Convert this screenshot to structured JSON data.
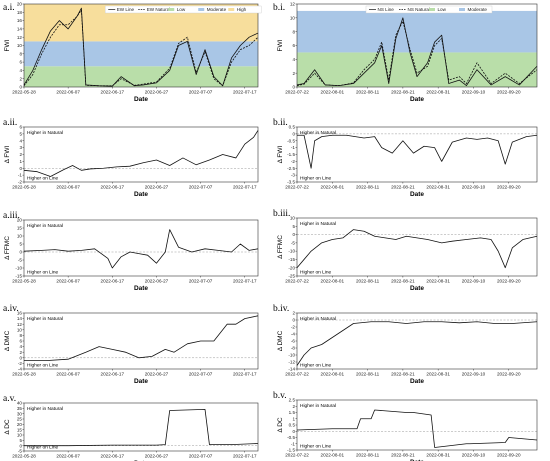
{
  "chart_data": [
    {
      "id": "a1",
      "panel_label": "a.i.",
      "type": "line",
      "ylabel": "FWI",
      "xlabel": "Date",
      "ylim": [
        0,
        20
      ],
      "yticks": [
        0,
        2,
        4,
        6,
        8,
        10,
        12,
        14,
        16,
        18,
        20
      ],
      "xlim": [
        "2022-05-28",
        "2022-07-20"
      ],
      "xticks": [
        "2022-05-28",
        "2022-06-07",
        "2022-06-17",
        "2022-06-27",
        "2022-07-07",
        "2022-07-17"
      ],
      "bands": [
        {
          "name": "Low",
          "from": 0,
          "to": 5,
          "color": "#b9dea9"
        },
        {
          "name": "Moderate",
          "from": 5,
          "to": 11,
          "color": "#a9c6e6"
        },
        {
          "name": "High",
          "from": 11,
          "to": 20,
          "color": "#f7de9c"
        }
      ],
      "legend": [
        "EW Line",
        "EW Natural",
        "Low",
        "Moderate",
        "High"
      ],
      "series": [
        {
          "name": "EW Line",
          "style": "solid",
          "x": [
            "2022-05-28",
            "2022-05-30",
            "2022-06-01",
            "2022-06-03",
            "2022-06-05",
            "2022-06-07",
            "2022-06-09",
            "2022-06-10",
            "2022-06-11",
            "2022-06-14",
            "2022-06-17",
            "2022-06-19",
            "2022-06-22",
            "2022-06-24",
            "2022-06-27",
            "2022-06-30",
            "2022-07-02",
            "2022-07-04",
            "2022-07-06",
            "2022-07-08",
            "2022-07-10",
            "2022-07-12",
            "2022-07-14",
            "2022-07-16",
            "2022-07-18",
            "2022-07-20"
          ],
          "y": [
            0.5,
            4,
            9,
            13.5,
            16,
            14,
            17,
            19,
            0.5,
            0.3,
            0.2,
            2.5,
            0.3,
            0.5,
            1,
            4,
            10,
            11,
            3,
            9,
            2.5,
            0.3,
            7,
            10,
            12,
            13
          ]
        },
        {
          "name": "EW Natural",
          "style": "dashed",
          "x": [
            "2022-05-28",
            "2022-05-30",
            "2022-06-01",
            "2022-06-03",
            "2022-06-05",
            "2022-06-07",
            "2022-06-09",
            "2022-06-10",
            "2022-06-11",
            "2022-06-14",
            "2022-06-17",
            "2022-06-19",
            "2022-06-22",
            "2022-06-24",
            "2022-06-27",
            "2022-06-30",
            "2022-07-02",
            "2022-07-04",
            "2022-07-06",
            "2022-07-08",
            "2022-07-10",
            "2022-07-12",
            "2022-07-14",
            "2022-07-16",
            "2022-07-18",
            "2022-07-20"
          ],
          "y": [
            0.3,
            3,
            8,
            12,
            15,
            15,
            17,
            18.5,
            0.4,
            0.3,
            0.3,
            2,
            0.4,
            0.7,
            1.2,
            4.5,
            10.5,
            12,
            3.5,
            8.5,
            2,
            0.3,
            6,
            9,
            10,
            12
          ]
        }
      ]
    },
    {
      "id": "b1",
      "panel_label": "b.i.",
      "type": "line",
      "ylabel": "FWI",
      "xlabel": "Date",
      "ylim": [
        0,
        12
      ],
      "yticks": [
        0,
        2,
        4,
        6,
        8,
        10,
        12
      ],
      "xlim": [
        "2022-07-22",
        "2022-09-28"
      ],
      "xticks": [
        "2022-07-22",
        "2022-08-01",
        "2022-08-11",
        "2022-08-21",
        "2022-08-31",
        "2022-09-10",
        "2022-09-20"
      ],
      "bands": [
        {
          "name": "Low",
          "from": 0,
          "to": 5,
          "color": "#b9dea9"
        },
        {
          "name": "Moderate",
          "from": 5,
          "to": 11,
          "color": "#a9c6e6"
        }
      ],
      "legend": [
        "NS Line",
        "NS Natural",
        "Low",
        "Moderate"
      ],
      "series": [
        {
          "name": "NS Line",
          "style": "solid",
          "x": [
            "2022-07-22",
            "2022-07-24",
            "2022-07-27",
            "2022-07-30",
            "2022-08-03",
            "2022-08-07",
            "2022-08-10",
            "2022-08-13",
            "2022-08-15",
            "2022-08-17",
            "2022-08-19",
            "2022-08-21",
            "2022-08-23",
            "2022-08-25",
            "2022-08-28",
            "2022-08-30",
            "2022-09-01",
            "2022-09-03",
            "2022-09-06",
            "2022-09-08",
            "2022-09-11",
            "2022-09-15",
            "2022-09-19",
            "2022-09-23",
            "2022-09-28"
          ],
          "y": [
            0.3,
            0.5,
            2.5,
            0.3,
            0.2,
            0.5,
            2,
            3.5,
            6,
            0.5,
            7,
            10,
            5,
            1.5,
            3.5,
            6.5,
            7.5,
            0.5,
            1,
            0.2,
            2.5,
            0.3,
            1.5,
            0.3,
            3
          ]
        },
        {
          "name": "NS Natural",
          "style": "dashed",
          "x": [
            "2022-07-22",
            "2022-07-24",
            "2022-07-27",
            "2022-07-30",
            "2022-08-03",
            "2022-08-07",
            "2022-08-10",
            "2022-08-13",
            "2022-08-15",
            "2022-08-17",
            "2022-08-19",
            "2022-08-21",
            "2022-08-23",
            "2022-08-25",
            "2022-08-28",
            "2022-08-30",
            "2022-09-01",
            "2022-09-03",
            "2022-09-06",
            "2022-09-08",
            "2022-09-11",
            "2022-09-15",
            "2022-09-19",
            "2022-09-23",
            "2022-09-28"
          ],
          "y": [
            0.2,
            0.4,
            2,
            0.3,
            0.2,
            0.6,
            2.5,
            4,
            6.5,
            1,
            7.5,
            9.5,
            5.5,
            2,
            3,
            6,
            7,
            1,
            1.5,
            0.5,
            3.5,
            0.5,
            2,
            0.5,
            2.5
          ]
        }
      ]
    },
    {
      "id": "a2",
      "panel_label": "a.ii.",
      "type": "line",
      "ylabel": "Δ FWI",
      "xlabel": "Date",
      "ylim": [
        -2,
        6
      ],
      "yticks": [
        -2,
        -1,
        0,
        1,
        2,
        3,
        4,
        5,
        6
      ],
      "xlim": [
        "2022-05-28",
        "2022-07-20"
      ],
      "xticks": [
        "2022-05-28",
        "2022-06-07",
        "2022-06-17",
        "2022-06-27",
        "2022-07-07",
        "2022-07-17"
      ],
      "annotations": [
        "Higher in Natural",
        "Higher on Line"
      ],
      "series": [
        {
          "name": "Δ FWI",
          "x": [
            "2022-05-28",
            "2022-05-31",
            "2022-06-03",
            "2022-06-06",
            "2022-06-08",
            "2022-06-10",
            "2022-06-12",
            "2022-06-15",
            "2022-06-18",
            "2022-06-21",
            "2022-06-24",
            "2022-06-27",
            "2022-06-30",
            "2022-07-03",
            "2022-07-06",
            "2022-07-09",
            "2022-07-12",
            "2022-07-15",
            "2022-07-17",
            "2022-07-19",
            "2022-07-20"
          ],
          "y": [
            -0.3,
            -0.5,
            -1.2,
            -0.2,
            0.4,
            -0.3,
            -0.1,
            0,
            0.2,
            0.3,
            0.8,
            1.2,
            0.4,
            1.5,
            0.5,
            1.2,
            2,
            1.5,
            3.5,
            4.5,
            5.5
          ]
        }
      ]
    },
    {
      "id": "b2",
      "panel_label": "b.ii.",
      "type": "line",
      "ylabel": "Δ FWI",
      "xlabel": "Date",
      "ylim": [
        -3.5,
        0.5
      ],
      "yticks": [
        -3.5,
        -3,
        -2.5,
        -2,
        -1.5,
        -1,
        -0.5,
        0,
        0.5
      ],
      "xlim": [
        "2022-07-22",
        "2022-09-28"
      ],
      "xticks": [
        "2022-07-22",
        "2022-08-01",
        "2022-08-11",
        "2022-08-21",
        "2022-08-31",
        "2022-09-10",
        "2022-09-20"
      ],
      "annotations": [
        "Higher in Natural",
        "Higher on Line"
      ],
      "series": [
        {
          "name": "Δ FWI",
          "x": [
            "2022-07-22",
            "2022-07-24",
            "2022-07-26",
            "2022-07-27",
            "2022-07-29",
            "2022-08-01",
            "2022-08-05",
            "2022-08-10",
            "2022-08-13",
            "2022-08-15",
            "2022-08-18",
            "2022-08-21",
            "2022-08-24",
            "2022-08-27",
            "2022-08-30",
            "2022-09-01",
            "2022-09-04",
            "2022-09-08",
            "2022-09-11",
            "2022-09-14",
            "2022-09-17",
            "2022-09-19",
            "2022-09-21",
            "2022-09-25",
            "2022-09-28"
          ],
          "y": [
            -0.1,
            -0.1,
            -2.5,
            -0.5,
            -0.2,
            -0.1,
            -0.1,
            -0.3,
            -0.2,
            -1,
            -1.4,
            -0.5,
            -1.4,
            -0.9,
            -1,
            -2,
            -0.6,
            -0.3,
            -0.4,
            -0.3,
            -0.5,
            -2.2,
            -0.6,
            -0.2,
            -0.1
          ]
        }
      ]
    },
    {
      "id": "a3",
      "panel_label": "a.iii.",
      "type": "line",
      "ylabel": "Δ FFMC",
      "xlabel": "Date",
      "ylim": [
        -15,
        20
      ],
      "yticks": [
        -15,
        -10,
        -5,
        0,
        5,
        10,
        15,
        20
      ],
      "xlim": [
        "2022-05-28",
        "2022-07-20"
      ],
      "xticks": [
        "2022-05-28",
        "2022-06-07",
        "2022-06-17",
        "2022-06-27",
        "2022-07-07",
        "2022-07-17"
      ],
      "annotations": [
        "Higher in Natural",
        "Higher on Line"
      ],
      "series": [
        {
          "name": "Δ FFMC",
          "x": [
            "2022-05-28",
            "2022-06-01",
            "2022-06-04",
            "2022-06-07",
            "2022-06-10",
            "2022-06-13",
            "2022-06-16",
            "2022-06-17",
            "2022-06-19",
            "2022-06-21",
            "2022-06-23",
            "2022-06-25",
            "2022-06-27",
            "2022-06-29",
            "2022-06-30",
            "2022-07-02",
            "2022-07-05",
            "2022-07-08",
            "2022-07-11",
            "2022-07-14",
            "2022-07-16",
            "2022-07-18",
            "2022-07-20"
          ],
          "y": [
            0.5,
            1,
            1.5,
            0.5,
            1,
            2,
            -4,
            -10,
            -3,
            0,
            -1,
            -2,
            -7,
            0,
            14,
            3,
            0,
            2,
            1,
            0,
            5,
            1,
            2
          ]
        }
      ]
    },
    {
      "id": "b3",
      "panel_label": "b.iii.",
      "type": "line",
      "ylabel": "Δ FFMC",
      "xlabel": "Date",
      "ylim": [
        -25,
        10
      ],
      "yticks": [
        -25,
        -20,
        -15,
        -10,
        -5,
        0,
        5,
        10
      ],
      "xlim": [
        "2022-07-22",
        "2022-09-28"
      ],
      "xticks": [
        "2022-07-22",
        "2022-08-01",
        "2022-08-11",
        "2022-08-21",
        "2022-08-31",
        "2022-09-10",
        "2022-09-20"
      ],
      "annotations": [
        "Higher in Natural",
        "Higher on Line"
      ],
      "series": [
        {
          "name": "Δ FFMC",
          "x": [
            "2022-07-22",
            "2022-07-24",
            "2022-07-26",
            "2022-07-29",
            "2022-08-01",
            "2022-08-04",
            "2022-08-07",
            "2022-08-10",
            "2022-08-13",
            "2022-08-16",
            "2022-08-19",
            "2022-08-22",
            "2022-08-25",
            "2022-08-28",
            "2022-09-01",
            "2022-09-04",
            "2022-09-08",
            "2022-09-12",
            "2022-09-15",
            "2022-09-17",
            "2022-09-19",
            "2022-09-21",
            "2022-09-24",
            "2022-09-28"
          ],
          "y": [
            -20,
            -15,
            -10,
            -5,
            -3,
            -2,
            3,
            2,
            -1,
            -2,
            -3,
            -1,
            -2,
            -3,
            -5,
            -4,
            -3,
            -2,
            -3,
            -10,
            -20,
            -8,
            -3,
            -1
          ]
        }
      ]
    },
    {
      "id": "a4",
      "panel_label": "a.iv.",
      "type": "line",
      "ylabel": "Δ DMC",
      "xlabel": "Date",
      "ylim": [
        -4,
        16
      ],
      "yticks": [
        -4,
        -2,
        0,
        2,
        4,
        6,
        8,
        10,
        12,
        14,
        16
      ],
      "xlim": [
        "2022-05-28",
        "2022-07-20"
      ],
      "xticks": [
        "2022-05-28",
        "2022-06-07",
        "2022-06-17",
        "2022-06-27",
        "2022-07-07",
        "2022-07-17"
      ],
      "annotations": [
        "Higher in Natural",
        "Higher on Line"
      ],
      "series": [
        {
          "name": "Δ DMC",
          "x": [
            "2022-05-28",
            "2022-06-02",
            "2022-06-07",
            "2022-06-11",
            "2022-06-14",
            "2022-06-17",
            "2022-06-20",
            "2022-06-23",
            "2022-06-26",
            "2022-06-29",
            "2022-07-01",
            "2022-07-04",
            "2022-07-07",
            "2022-07-10",
            "2022-07-13",
            "2022-07-15",
            "2022-07-17",
            "2022-07-20"
          ],
          "y": [
            -1,
            -1,
            -0.5,
            2,
            4,
            3,
            2,
            0,
            0.5,
            3,
            2,
            5,
            6,
            6,
            12,
            12,
            14,
            15
          ]
        }
      ]
    },
    {
      "id": "b4",
      "panel_label": "b.iv.",
      "type": "line",
      "ylabel": "Δ DMC",
      "xlabel": "Date",
      "ylim": [
        -14,
        2
      ],
      "yticks": [
        -14,
        -12,
        -10,
        -8,
        -6,
        -4,
        -2,
        0,
        2
      ],
      "xlim": [
        "2022-07-22",
        "2022-09-28"
      ],
      "xticks": [
        "2022-07-22",
        "2022-08-01",
        "2022-08-11",
        "2022-08-21",
        "2022-08-31",
        "2022-09-10",
        "2022-09-20"
      ],
      "annotations": [
        "Higher in Natural",
        "Higher on Line"
      ],
      "series": [
        {
          "name": "Δ DMC",
          "x": [
            "2022-07-22",
            "2022-07-24",
            "2022-07-26",
            "2022-07-29",
            "2022-08-01",
            "2022-08-04",
            "2022-08-07",
            "2022-08-12",
            "2022-08-17",
            "2022-08-22",
            "2022-08-27",
            "2022-09-01",
            "2022-09-06",
            "2022-09-11",
            "2022-09-16",
            "2022-09-21",
            "2022-09-28"
          ],
          "y": [
            -13,
            -10,
            -8,
            -7,
            -5,
            -3,
            -1,
            -0.5,
            -0.5,
            -1,
            -0.5,
            -0.5,
            -0.8,
            -0.5,
            -1,
            -1,
            -0.5
          ]
        }
      ]
    },
    {
      "id": "a5",
      "panel_label": "a.v.",
      "type": "line",
      "ylabel": "Δ DC",
      "xlabel": "Date",
      "ylim": [
        -5,
        40
      ],
      "yticks": [
        -5,
        0,
        5,
        10,
        15,
        20,
        25,
        30,
        35,
        40
      ],
      "xlim": [
        "2022-05-28",
        "2022-07-20"
      ],
      "xticks": [
        "2022-05-28",
        "2022-06-07",
        "2022-06-17",
        "2022-06-27",
        "2022-07-07",
        "2022-07-17"
      ],
      "annotations": [
        "Higher in Natural",
        "Higher on Line"
      ],
      "series": [
        {
          "name": "Δ DC",
          "x": [
            "2022-05-28",
            "2022-06-07",
            "2022-06-17",
            "2022-06-27",
            "2022-06-29",
            "2022-06-30",
            "2022-07-08",
            "2022-07-09",
            "2022-07-14",
            "2022-07-20"
          ],
          "y": [
            0,
            0,
            0.5,
            0.5,
            1,
            33,
            34,
            1,
            1,
            2
          ]
        }
      ]
    },
    {
      "id": "b5",
      "panel_label": "b.v.",
      "type": "line",
      "ylabel": "Δ DC",
      "xlabel": "Date",
      "ylim": [
        -1.5,
        2.5
      ],
      "yticks": [
        -1.5,
        -1,
        -0.5,
        0,
        0.5,
        1,
        1.5,
        2,
        2.5
      ],
      "xlim": [
        "2022-07-22",
        "2022-09-28"
      ],
      "xticks": [
        "2022-07-22",
        "2022-08-01",
        "2022-08-11",
        "2022-08-21",
        "2022-08-31",
        "2022-09-10",
        "2022-09-20"
      ],
      "annotations": [
        "Higher in Natural",
        "Higher on Line"
      ],
      "series": [
        {
          "name": "Δ DC",
          "x": [
            "2022-07-22",
            "2022-08-01",
            "2022-08-08",
            "2022-08-09",
            "2022-08-12",
            "2022-08-13",
            "2022-08-22",
            "2022-08-24",
            "2022-08-29",
            "2022-08-30",
            "2022-09-08",
            "2022-09-09",
            "2022-09-19",
            "2022-09-20",
            "2022-09-28"
          ],
          "y": [
            0.1,
            0.2,
            0.2,
            1,
            1,
            1.7,
            1.5,
            1.5,
            1.3,
            -1.3,
            -1,
            -1,
            -0.9,
            -0.5,
            -0.7
          ]
        }
      ]
    }
  ]
}
